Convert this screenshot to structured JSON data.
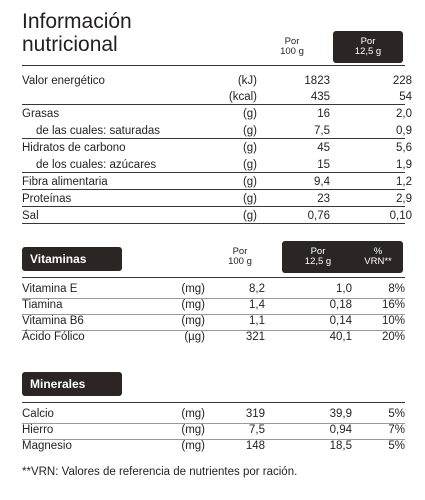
{
  "nutrition": {
    "title_line1": "Información",
    "title_line2": "nutricional",
    "col_per100_line1": "Por",
    "col_per100_line2": "100 g",
    "col_serving_line1": "Por",
    "col_serving_line2": "12,5 g",
    "rows": [
      {
        "label": "Valor energético",
        "unit": "(kJ)",
        "per100": "1823",
        "serving": "228"
      },
      {
        "label": "",
        "unit": "(kcal)",
        "per100": "435",
        "serving": "54"
      },
      {
        "label": "Grasas",
        "unit": "(g)",
        "per100": "16",
        "serving": "2,0"
      },
      {
        "label": "de las cuales: saturadas",
        "unit": "(g)",
        "per100": "7,5",
        "serving": "0,9"
      },
      {
        "label": "Hidratos de carbono",
        "unit": "(g)",
        "per100": "45",
        "serving": "5,6"
      },
      {
        "label": "de los cuales: azúcares",
        "unit": "(g)",
        "per100": "15",
        "serving": "1,9"
      },
      {
        "label": "Fibra alimentaria",
        "unit": "(g)",
        "per100": "9,4",
        "serving": "1,2"
      },
      {
        "label": "Proteínas",
        "unit": "(g)",
        "per100": "23",
        "serving": "2,9"
      },
      {
        "label": "Sal",
        "unit": "(g)",
        "per100": "0,76",
        "serving": "0,10"
      }
    ]
  },
  "vitamins": {
    "section_label": "Vitaminas",
    "col_per100_line1": "Por",
    "col_per100_line2": "100 g",
    "col_serving_line1": "Por",
    "col_serving_line2": "12,5 g",
    "col_vrn_line1": "%",
    "col_vrn_line2": "VRN**",
    "rows": [
      {
        "label": "Vitamina E",
        "unit": "(mg)",
        "per100": "8,2",
        "serving": "1,0",
        "vrn": "8%"
      },
      {
        "label": "Tiamina",
        "unit": "(mg)",
        "per100": "1,4",
        "serving": "0,18",
        "vrn": "16%"
      },
      {
        "label": "Vitamina B6",
        "unit": "(mg)",
        "per100": "1,1",
        "serving": "0,14",
        "vrn": "10%"
      },
      {
        "label": "Ácido Fólico",
        "unit": "(µg)",
        "per100": "321",
        "serving": "40,1",
        "vrn": "20%"
      }
    ]
  },
  "minerals": {
    "section_label": "Minerales",
    "rows": [
      {
        "label": "Calcio",
        "unit": "(mg)",
        "per100": "319",
        "serving": "39,9",
        "vrn": "5%"
      },
      {
        "label": "Hierro",
        "unit": "(mg)",
        "per100": "7,5",
        "serving": "0,94",
        "vrn": "7%"
      },
      {
        "label": "Magnesio",
        "unit": "(mg)",
        "per100": "148",
        "serving": "18,5",
        "vrn": "5%"
      }
    ]
  },
  "footnote": "**VRN: Valores de referencia de nutrientes por ración."
}
